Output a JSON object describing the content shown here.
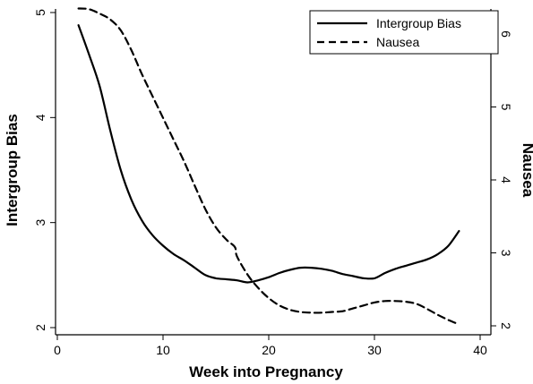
{
  "chart_data": {
    "type": "line",
    "xlabel": "Week into Pregnancy",
    "ylabel_left": "Intergroup Bias",
    "ylabel_right": "Nausea",
    "xlim": [
      0,
      40
    ],
    "ylim_left": [
      2,
      5
    ],
    "ylim_right": [
      2,
      6.4
    ],
    "xticks": [
      0,
      10,
      20,
      30,
      40
    ],
    "yticks_left": [
      2,
      3,
      4,
      5
    ],
    "yticks_right": [
      2,
      3,
      4,
      5,
      6
    ],
    "grid": false,
    "legend_position": "top-right",
    "series": [
      {
        "name": "Intergroup Bias",
        "axis": "left",
        "style": "solid",
        "color": "#000000",
        "x": [
          2,
          3,
          4,
          5,
          6,
          7,
          8,
          9,
          10,
          11,
          12,
          13,
          14,
          15,
          16,
          17,
          18,
          19,
          20,
          21,
          22,
          23,
          24,
          25,
          26,
          27,
          28,
          29,
          30,
          31,
          32,
          33,
          34,
          35,
          36,
          37,
          38
        ],
        "values": [
          4.88,
          4.6,
          4.3,
          3.88,
          3.5,
          3.22,
          3.02,
          2.88,
          2.78,
          2.7,
          2.64,
          2.57,
          2.5,
          2.47,
          2.46,
          2.45,
          2.43,
          2.45,
          2.48,
          2.52,
          2.55,
          2.57,
          2.57,
          2.56,
          2.54,
          2.51,
          2.49,
          2.47,
          2.47,
          2.52,
          2.56,
          2.59,
          2.62,
          2.65,
          2.7,
          2.78,
          2.92
        ]
      },
      {
        "name": "Nausea",
        "axis": "right",
        "style": "dashed",
        "color": "#000000",
        "x": [
          2,
          3,
          4,
          5,
          6,
          7,
          8,
          9,
          10,
          11,
          12,
          13,
          14,
          15,
          16,
          16.8,
          17,
          18,
          19,
          20,
          21,
          22,
          23,
          24,
          25,
          26,
          27,
          28,
          29,
          30,
          31,
          32,
          33,
          34,
          35,
          36,
          37,
          38
        ],
        "values": [
          6.35,
          6.34,
          6.28,
          6.2,
          6.05,
          5.78,
          5.45,
          5.15,
          4.85,
          4.55,
          4.25,
          3.92,
          3.6,
          3.35,
          3.18,
          3.08,
          2.95,
          2.7,
          2.52,
          2.38,
          2.28,
          2.22,
          2.19,
          2.18,
          2.18,
          2.19,
          2.2,
          2.24,
          2.28,
          2.32,
          2.34,
          2.34,
          2.33,
          2.3,
          2.23,
          2.15,
          2.08,
          2.02
        ]
      }
    ]
  }
}
